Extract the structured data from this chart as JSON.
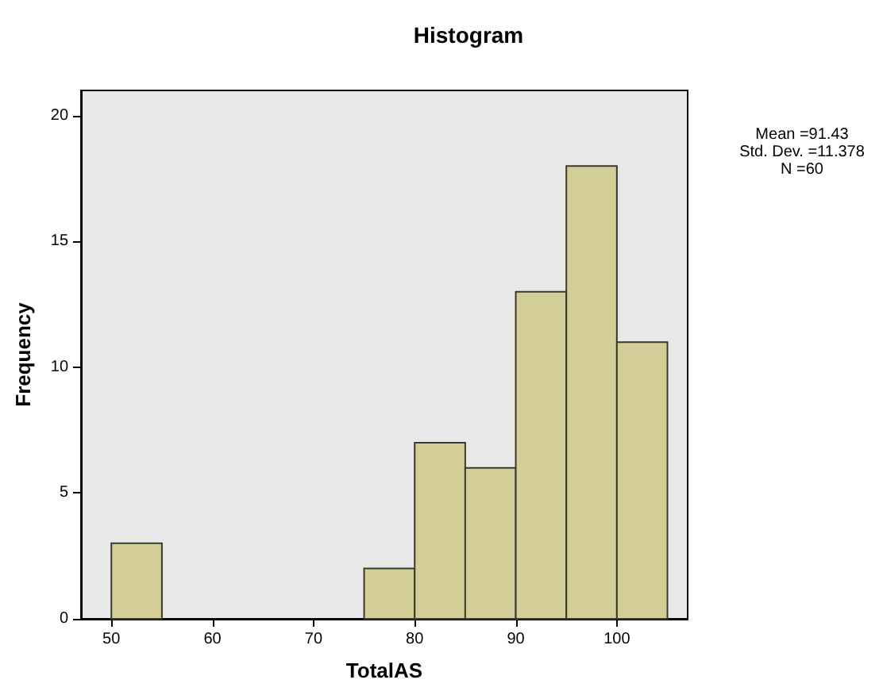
{
  "chart_data": {
    "type": "histogram",
    "title": "Histogram",
    "xlabel": "TotalAS",
    "ylabel": "Frequency",
    "bins": [
      50,
      55,
      60,
      65,
      70,
      75,
      80,
      85,
      90,
      95,
      100,
      105
    ],
    "values": [
      3,
      0,
      0,
      0,
      0,
      2,
      7,
      6,
      13,
      18,
      11
    ],
    "color": "#d3ce97",
    "xlim": [
      47,
      107
    ],
    "xticks": [
      50,
      60,
      70,
      80,
      90,
      100
    ],
    "ylim": [
      0,
      21
    ],
    "yticks": [
      0,
      5,
      10,
      15,
      20
    ],
    "annotations": [
      "Mean =91.43",
      "Std. Dev. =11.378",
      "N =60"
    ]
  }
}
